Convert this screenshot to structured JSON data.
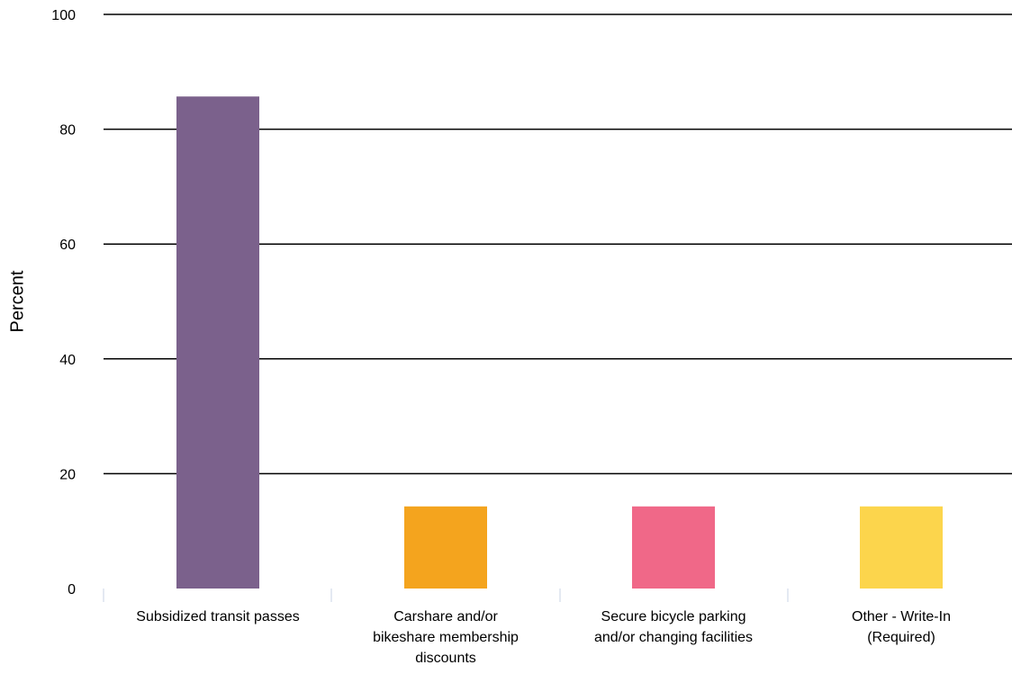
{
  "chart_data": {
    "type": "bar",
    "title": "",
    "xlabel": "",
    "ylabel": "Percent",
    "ylim": [
      0,
      100
    ],
    "yticks": [
      0,
      20,
      40,
      60,
      80,
      100
    ],
    "grid": true,
    "legend": "none",
    "categories": [
      [
        "Subsidized transit passes"
      ],
      [
        "Carshare and/or",
        "bikeshare membership",
        "discounts"
      ],
      [
        "Secure bicycle parking",
        "and/or changing facilities"
      ],
      [
        "Other - Write-In",
        "(Required)"
      ]
    ],
    "values": [
      85.7,
      14.3,
      14.3,
      14.3
    ],
    "colors": [
      "#7b618c",
      "#f4a41e",
      "#f06888",
      "#fcd54c"
    ]
  }
}
